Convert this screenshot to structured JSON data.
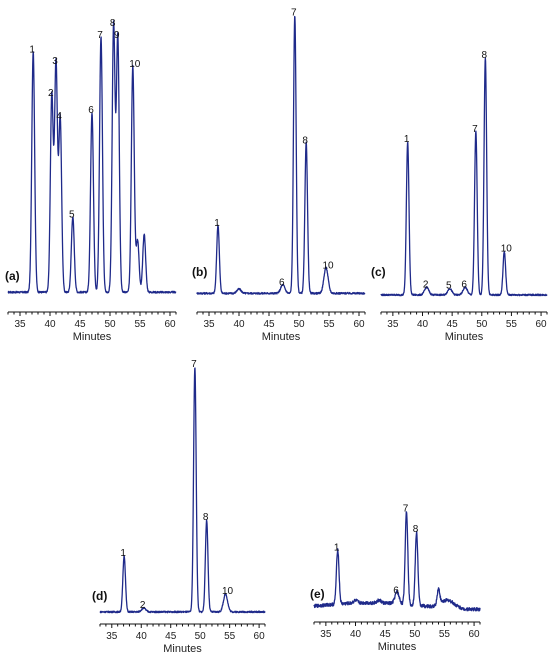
{
  "chart_data": [
    {
      "type": "line",
      "panel_label": "(a)",
      "xlabel": "Minutes",
      "xlim": [
        33,
        61
      ],
      "xticks": [
        35,
        40,
        45,
        50,
        55,
        60
      ],
      "ylim": [
        0,
        100
      ],
      "baseline": 2,
      "noise": 0.3,
      "peaks": [
        {
          "label": "1",
          "x": 37.2,
          "y": 83
        },
        {
          "label": "2",
          "x": 40.3,
          "y": 68
        },
        {
          "label": "3",
          "x": 41.0,
          "y": 79
        },
        {
          "label": "4",
          "x": 41.7,
          "y": 60
        },
        {
          "label": "5",
          "x": 43.8,
          "y": 26
        },
        {
          "label": "6",
          "x": 47.0,
          "y": 62
        },
        {
          "label": "7",
          "x": 48.5,
          "y": 88
        },
        {
          "label": "8",
          "x": 50.6,
          "y": 92
        },
        {
          "label": "9",
          "x": 51.3,
          "y": 88
        },
        {
          "label": "10",
          "x": 53.8,
          "y": 78
        },
        {
          "label": "",
          "x": 54.6,
          "y": 18
        },
        {
          "label": "",
          "x": 55.7,
          "y": 20
        }
      ]
    },
    {
      "type": "line",
      "panel_label": "(b)",
      "xlabel": "Minutes",
      "xlim": [
        33,
        61
      ],
      "xticks": [
        35,
        40,
        45,
        50,
        55,
        60
      ],
      "ylim": [
        0,
        100
      ],
      "baseline": 2,
      "noise": 0.3,
      "peaks": [
        {
          "label": "1",
          "x": 36.5,
          "y": 24
        },
        {
          "label": "",
          "x": 40.0,
          "y": 1.5
        },
        {
          "label": "6",
          "x": 47.3,
          "y": 3
        },
        {
          "label": "7",
          "x": 49.3,
          "y": 98
        },
        {
          "label": "8",
          "x": 51.2,
          "y": 53
        },
        {
          "label": "10",
          "x": 54.5,
          "y": 9
        }
      ]
    },
    {
      "type": "line",
      "panel_label": "(c)",
      "xlabel": "Minutes",
      "xlim": [
        33,
        61
      ],
      "xticks": [
        35,
        40,
        45,
        50,
        55,
        60
      ],
      "ylim": [
        0,
        100
      ],
      "baseline": 2,
      "noise": 0.3,
      "peaks": [
        {
          "label": "1",
          "x": 37.5,
          "y": 60
        },
        {
          "label": "2",
          "x": 40.7,
          "y": 3
        },
        {
          "label": "5",
          "x": 44.6,
          "y": 2.5
        },
        {
          "label": "6",
          "x": 47.2,
          "y": 3
        },
        {
          "label": "7",
          "x": 49.0,
          "y": 64
        },
        {
          "label": "8",
          "x": 50.6,
          "y": 93
        },
        {
          "label": "10",
          "x": 53.8,
          "y": 17
        }
      ]
    },
    {
      "type": "line",
      "panel_label": "(d)",
      "xlabel": "Minutes",
      "xlim": [
        33,
        61
      ],
      "xticks": [
        35,
        40,
        45,
        50,
        55,
        60
      ],
      "ylim": [
        0,
        100
      ],
      "baseline": 2,
      "noise": 0.3,
      "peaks": [
        {
          "label": "1",
          "x": 37.1,
          "y": 22
        },
        {
          "label": "2",
          "x": 40.4,
          "y": 1.5
        },
        {
          "label": "7",
          "x": 49.1,
          "y": 96
        },
        {
          "label": "8",
          "x": 51.1,
          "y": 36
        },
        {
          "label": "10",
          "x": 54.3,
          "y": 7
        }
      ]
    },
    {
      "type": "line",
      "panel_label": "(e)",
      "xlabel": "Minutes",
      "xlim": [
        33,
        61
      ],
      "xticks": [
        35,
        40,
        45,
        50,
        55,
        60
      ],
      "ylim": [
        0,
        100
      ],
      "baseline": 3,
      "noise": 1.3,
      "peaks": [
        {
          "label": "1",
          "x": 37.0,
          "y": 42
        },
        {
          "label": "",
          "x": 40.0,
          "y": 2
        },
        {
          "label": "",
          "x": 44.0,
          "y": 2
        },
        {
          "label": "6",
          "x": 47.0,
          "y": 9
        },
        {
          "label": "7",
          "x": 48.6,
          "y": 72
        },
        {
          "label": "8",
          "x": 50.3,
          "y": 56
        },
        {
          "label": "",
          "x": 54.0,
          "y": 12
        }
      ]
    }
  ]
}
